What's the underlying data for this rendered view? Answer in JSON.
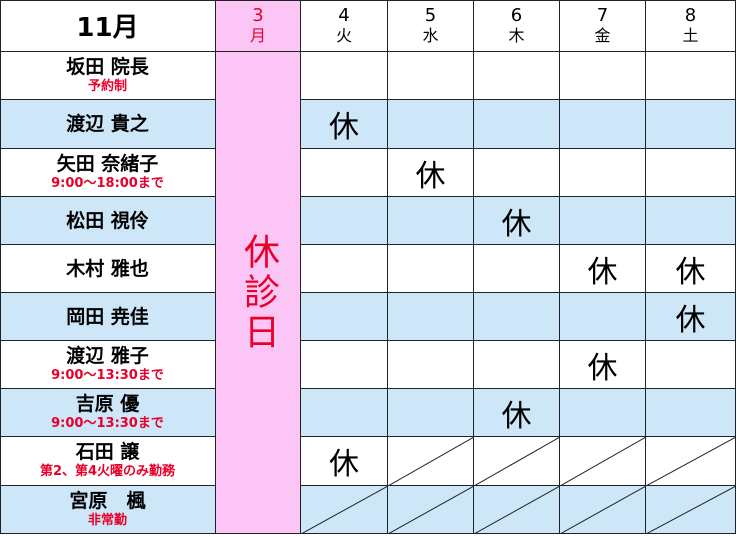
{
  "header": {
    "month": "11月",
    "days": [
      {
        "day": "3",
        "weekday": "月"
      },
      {
        "day": "4",
        "weekday": "火"
      },
      {
        "day": "5",
        "weekday": "水"
      },
      {
        "day": "6",
        "weekday": "木"
      },
      {
        "day": "7",
        "weekday": "金"
      },
      {
        "day": "8",
        "weekday": "土"
      }
    ]
  },
  "closed_label": "休診日",
  "off_label": "休",
  "rows": [
    {
      "name": "坂田 院長",
      "note": "予約制",
      "cells": [
        null,
        null,
        null,
        null,
        null
      ]
    },
    {
      "name": "渡辺 貴之",
      "cells": [
        "休",
        null,
        null,
        null,
        null
      ]
    },
    {
      "name": "矢田 奈緒子",
      "note": "9:00～18:00まで",
      "cells": [
        null,
        "休",
        null,
        null,
        null
      ]
    },
    {
      "name": "松田 視伶",
      "cells": [
        null,
        null,
        "休",
        null,
        null
      ]
    },
    {
      "name": "木村 雅也",
      "cells": [
        null,
        null,
        null,
        "休",
        "休"
      ]
    },
    {
      "name": "岡田 尭佳",
      "cells": [
        null,
        null,
        null,
        null,
        "休"
      ]
    },
    {
      "name": "渡辺 雅子",
      "note": "9:00～13:30まで",
      "cells": [
        null,
        null,
        null,
        "休",
        null
      ]
    },
    {
      "name": "吉原 優",
      "note": "9:00～13:30まで",
      "cells": [
        null,
        null,
        "休",
        null,
        null
      ]
    },
    {
      "name": "石田 譲",
      "note": "第2、第4火曜のみ勤務",
      "cells": [
        "休",
        null,
        null,
        null,
        null
      ],
      "slashed_from": 1
    },
    {
      "name": "宮原　楓",
      "note": "非常勤",
      "cells": [
        null,
        null,
        null,
        null,
        null
      ],
      "slashed_from": 0
    }
  ]
}
